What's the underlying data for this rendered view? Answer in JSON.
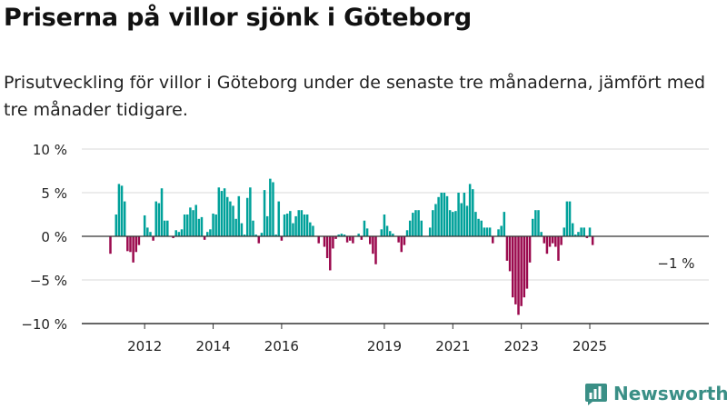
{
  "title": "Priserna på villor sjönk i Göteborg",
  "subtitle": "Prisutveckling för villor i Göteborg under de senaste tre månaderna, jämfört med tre månader tidigare.",
  "brand": {
    "name": "Newsworthy",
    "icon": "newsworthy-logo-icon",
    "color": "#3a8f86"
  },
  "colors": {
    "positive": "#00a19a",
    "negative": "#9b0a4e",
    "grid": "#d9d9d9",
    "axis": "#333333"
  },
  "chart_data": {
    "type": "bar",
    "x_start": "2011-01",
    "step": "month",
    "ylim": [
      -10,
      10
    ],
    "ytick_values": [
      10,
      5,
      0,
      -5,
      -10
    ],
    "ytick_labels": [
      "10 %",
      "5 %",
      "0 %",
      "−5 %",
      "−10 %"
    ],
    "xtick_labels": [
      "2012",
      "2014",
      "2016",
      "2019",
      "2021",
      "2023",
      "2025"
    ],
    "xtick_dates": [
      "2012-01",
      "2014-01",
      "2016-01",
      "2019-01",
      "2021-01",
      "2023-01",
      "2025-01"
    ],
    "last_value_label": "−1 %",
    "grid": true,
    "values": [
      -2,
      0,
      2.5,
      6,
      5.8,
      4,
      -1.7,
      -1.8,
      -3,
      -1.8,
      -1,
      0,
      2.4,
      1,
      0.5,
      -0.5,
      4,
      3.8,
      5.5,
      1.8,
      1.8,
      0,
      -0.2,
      0.7,
      0.5,
      0.8,
      2.5,
      2.5,
      3.3,
      3,
      3.6,
      2,
      2.2,
      -0.4,
      0.5,
      0.8,
      2.6,
      2.5,
      5.6,
      5.2,
      5.5,
      4.5,
      4,
      3.5,
      2,
      4.6,
      1.5,
      0.2,
      4.4,
      5.6,
      1.8,
      0.2,
      -0.8,
      0.4,
      5.3,
      2.3,
      6.6,
      6.2,
      0.2,
      4,
      -0.5,
      2.5,
      2.6,
      2.9,
      1.5,
      2.3,
      3,
      3,
      2.5,
      2.5,
      1.6,
      1.2,
      0,
      -0.8,
      0,
      -1.2,
      -2.5,
      -3.9,
      -1.4,
      -0.3,
      0.2,
      0.3,
      0.2,
      -0.7,
      -0.5,
      -0.8,
      0,
      0.3,
      -0.4,
      1.8,
      0.9,
      -0.9,
      -2,
      -3.2,
      0,
      0.8,
      2.5,
      1.2,
      0.6,
      0.3,
      0,
      -0.7,
      -1.8,
      -1,
      0.7,
      1.8,
      2.7,
      3,
      3,
      1.8,
      0,
      0,
      1,
      3,
      3.7,
      4.5,
      5,
      5,
      4.6,
      3,
      2.8,
      2.9,
      5,
      3.8,
      5,
      3.5,
      6,
      5.4,
      2.8,
      2,
      1.8,
      1,
      1,
      1,
      -0.8,
      0,
      0.8,
      1.2,
      2.8,
      -2.8,
      -4,
      -7,
      -7.8,
      -9,
      -8,
      -7,
      -6,
      -3,
      2,
      3,
      3,
      0.5,
      -0.8,
      -2,
      -1.2,
      -0.8,
      -1.2,
      -2.8,
      -1,
      1,
      4,
      4,
      1.5,
      0.2,
      0.5,
      1,
      1,
      -0.2,
      1,
      -1
    ]
  }
}
